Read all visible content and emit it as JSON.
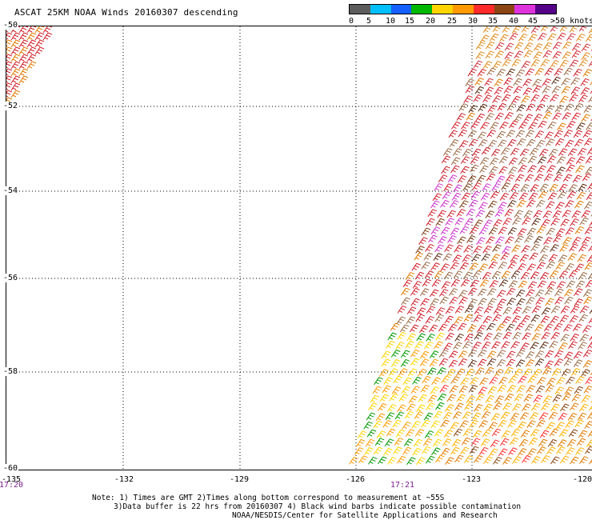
{
  "title": "ASCAT 25KM NOAA Winds 20160307 descending",
  "colorbar": {
    "colors": [
      "#5c5c5c",
      "#00bfff",
      "#1560ff",
      "#00b800",
      "#ffd400",
      "#ff9a00",
      "#ff2a2a",
      "#8b4513",
      "#dd33dd",
      "#550088"
    ],
    "labels": [
      "0",
      "5",
      "10",
      "15",
      "20",
      "25",
      "30",
      "35",
      "40",
      "45",
      ">50 knots"
    ]
  },
  "lat_labels": [
    "-50",
    "-52",
    "-54",
    "-56",
    "-58",
    "-60"
  ],
  "lon_labels": [
    "-135",
    "-132",
    "-129",
    "-126",
    "-123",
    "-120"
  ],
  "time_labels": [
    "17:20",
    "17:21"
  ],
  "notes": {
    "line1": "Note: 1) Times are GMT 2)Times along bottom correspond to measurement at ~55S",
    "line2": "3)Data buffer is 22 hrs from 20160307 4) Black wind barbs indicate possible contamination",
    "line3": "NOAA/NESDIS/Center for Satellite Applications and Research"
  }
}
